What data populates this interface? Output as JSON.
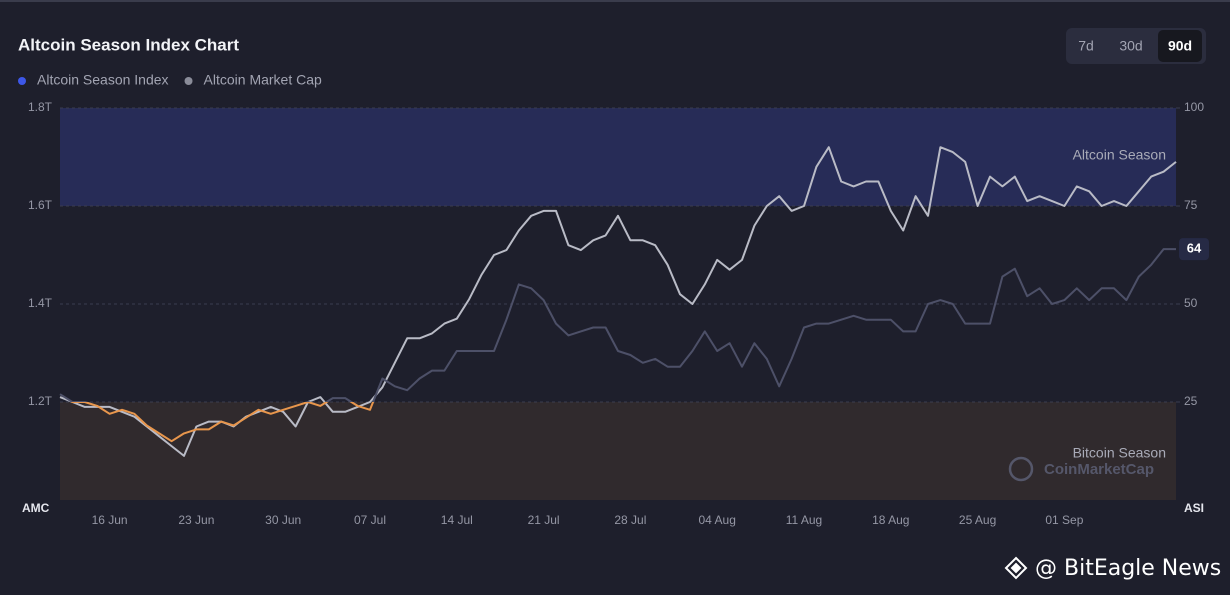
{
  "chart_data": {
    "type": "line",
    "title": "Altcoin Season Index Chart",
    "categories": [
      null,
      null,
      null,
      null,
      "16 Jun",
      null,
      null,
      null,
      null,
      null,
      null,
      "23 Jun",
      null,
      null,
      null,
      null,
      null,
      null,
      "30 Jun",
      null,
      null,
      null,
      null,
      null,
      null,
      "07 Jul",
      null,
      null,
      null,
      null,
      null,
      null,
      "14 Jul",
      null,
      null,
      null,
      null,
      null,
      null,
      "21 Jul",
      null,
      null,
      null,
      null,
      null,
      null,
      "28 Jul",
      null,
      null,
      null,
      null,
      null,
      null,
      "04 Aug",
      null,
      null,
      null,
      null,
      null,
      null,
      "11 Aug",
      null,
      null,
      null,
      null,
      null,
      null,
      "18 Aug",
      null,
      null,
      null,
      null,
      null,
      null,
      "25 Aug",
      null,
      null,
      null,
      null,
      null,
      null,
      "01 Sep",
      null,
      null,
      null,
      null,
      null,
      null,
      null,
      null,
      null
    ],
    "series": [
      {
        "name": "Altcoin Season Index",
        "axis": "y2",
        "color": "#3d57e8",
        "line_color": "#4d5068",
        "low_color": "#e8964c",
        "values": [
          27,
          25,
          25,
          24,
          22,
          23,
          22,
          19,
          17,
          15,
          17,
          18,
          18,
          20,
          19,
          21,
          23,
          22,
          23,
          24,
          25,
          24,
          26,
          26,
          24,
          23,
          31,
          29,
          28,
          31,
          33,
          33,
          38,
          38,
          38,
          38,
          46,
          55,
          54,
          51,
          45,
          42,
          43,
          44,
          44,
          38,
          37,
          35,
          36,
          34,
          34,
          38,
          43,
          38,
          40,
          34,
          40,
          36,
          29,
          36,
          44,
          45,
          45,
          46,
          47,
          46,
          46,
          46,
          43,
          43,
          50,
          51,
          50,
          45,
          45,
          45,
          57,
          59,
          52,
          54,
          50,
          51,
          54,
          51,
          54,
          54,
          51,
          57,
          60,
          64,
          64
        ]
      },
      {
        "name": "Altcoin Market Cap",
        "color": "#8a8c99",
        "line_color": "#b9bbc6",
        "values": [
          1.21,
          1.2,
          1.19,
          1.19,
          1.19,
          1.18,
          1.17,
          1.15,
          1.13,
          1.11,
          1.09,
          1.15,
          1.16,
          1.16,
          1.15,
          1.17,
          1.18,
          1.19,
          1.18,
          1.15,
          1.2,
          1.21,
          1.18,
          1.18,
          1.19,
          1.2,
          1.23,
          1.28,
          1.33,
          1.33,
          1.34,
          1.36,
          1.37,
          1.41,
          1.46,
          1.5,
          1.51,
          1.55,
          1.58,
          1.59,
          1.59,
          1.52,
          1.51,
          1.53,
          1.54,
          1.58,
          1.53,
          1.53,
          1.52,
          1.48,
          1.42,
          1.4,
          1.44,
          1.49,
          1.47,
          1.49,
          1.56,
          1.6,
          1.62,
          1.59,
          1.6,
          1.68,
          1.72,
          1.65,
          1.64,
          1.65,
          1.65,
          1.59,
          1.55,
          1.62,
          1.58,
          1.72,
          1.71,
          1.69,
          1.6,
          1.66,
          1.64,
          1.66,
          1.61,
          1.62,
          1.61,
          1.6,
          1.64,
          1.63,
          1.6,
          1.61,
          1.6,
          1.63,
          1.66,
          1.67,
          1.69
        ]
      }
    ],
    "ylim": [
      1.0,
      1.8
    ],
    "yticks": [
      {
        "value": 1.2,
        "label": "1.2T"
      },
      {
        "value": 1.4,
        "label": "1.4T"
      },
      {
        "value": 1.6,
        "label": "1.6T"
      },
      {
        "value": 1.8,
        "label": "1.8T"
      }
    ],
    "y2lim": [
      0,
      100
    ],
    "y2ticks": [
      25,
      50,
      75,
      100
    ],
    "ylabel": "AMC",
    "y2label": "ASI",
    "grid": true,
    "bands": [
      {
        "label": "Altcoin Season",
        "from": 75,
        "to": 100,
        "color": "#272c57"
      },
      {
        "label": "Bitcoin Season",
        "from": 0,
        "to": 25,
        "color": "#302a2d"
      }
    ],
    "watermark": "CoinMarketCap"
  },
  "controls": {
    "range_buttons": [
      "7d",
      "30d",
      "90d"
    ],
    "active": 2
  },
  "credit": "@ BitEagle News"
}
